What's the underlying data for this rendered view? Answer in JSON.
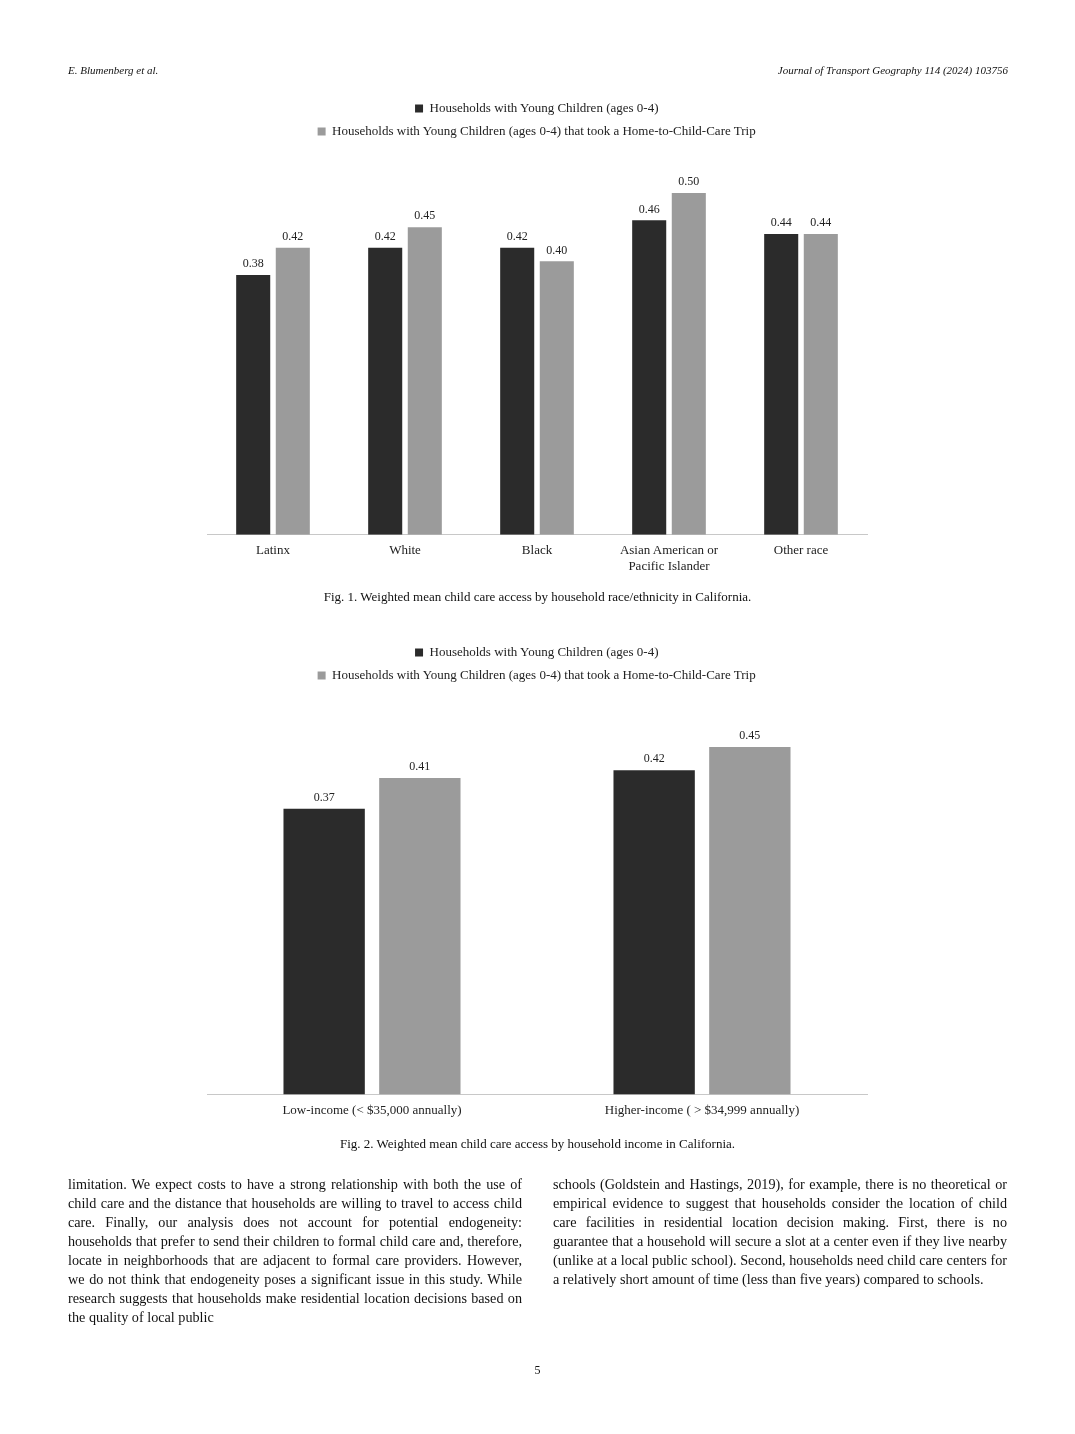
{
  "chart_data": [
    {
      "type": "bar",
      "categories": [
        "Latinx",
        "White",
        "Black",
        "Asian American or Pacific Islander",
        "Other race"
      ],
      "series": [
        {
          "name": "Households with Young Children (ages 0-4)",
          "color": "#2b2b2b",
          "values": [
            0.38,
            0.42,
            0.42,
            0.46,
            0.44
          ],
          "value_labels": [
            "0.38",
            "0.42",
            "0.42",
            "0.46",
            "0.44"
          ]
        },
        {
          "name": "Households with Young Children (ages 0-4) that took a Home-to-Child-Care Trip",
          "color": "#9b9b9b",
          "values": [
            0.42,
            0.45,
            0.4,
            0.5,
            0.44
          ],
          "value_labels": [
            "0.42",
            "0.45",
            "0.40",
            "0.50",
            "0.44"
          ]
        }
      ],
      "legend": "top",
      "grid": false,
      "tick_labels": "x",
      "annotations": [
        "E. Blumenberg et al.",
        "Journal of Transport Geography 114 (2024) 103756",
        "Fig. 1. Weighted mean child care access by household race/ethnicity in California."
      ]
    },
    {
      "type": "bar",
      "categories": [
        "Low-income (< $35,000 annually)",
        "Higher-income ( > $34,999 annually)"
      ],
      "series": [
        {
          "name": "Households with Young Children (ages 0-4)",
          "color": "#2b2b2b",
          "values": [
            0.37,
            0.42
          ],
          "value_labels": [
            "0.37",
            "0.42"
          ]
        },
        {
          "name": "Households with Young Children (ages 0-4) that took a Home-to-Child-Care Trip",
          "color": "#9b9b9b",
          "values": [
            0.41,
            0.45
          ],
          "value_labels": [
            "0.41",
            "0.45"
          ]
        }
      ],
      "legend": "top",
      "grid": false,
      "tick_labels": "x",
      "annotations": [
        "Fig. 2. Weighted mean child care access by household income in California.",
        "limitation. We expect costs to have a strong relationship with both the use of child care and the distance that households are willing to travel to access child care. Finally, our analysis does not account for potential endogeneity: households that prefer to send their children to formal child care and, therefore, locate in neighborhoods that are adjacent to formal care providers. However, we do not think that endogeneity poses a significant issue in this study. While research suggests that households make residential location decisions based on the quality of local public",
        "schools (Goldstein and Hastings, 2019), for example, there is no theoretical or empirical evidence to suggest that households consider the location of child care facilities in residential location decision making. First, there is no guarantee that a household will secure a slot at a center even if they live nearby (unlike at a local public school). Second, households need child care centers for a relatively short amount of time (less than five years) compared to schools.",
        "5"
      ]
    }
  ]
}
